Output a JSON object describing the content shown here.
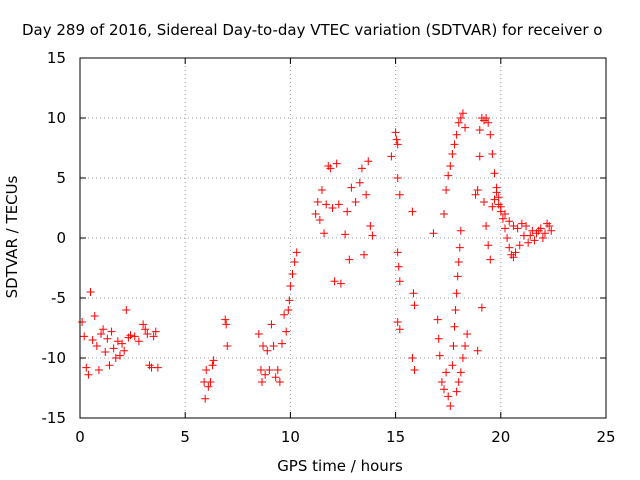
{
  "chart_data": {
    "type": "scatter",
    "title": "Day 289 of 2016, Sidereal Day-to-day VTEC variation (SDTVAR) for receiver o",
    "xlabel": "GPS time / hours",
    "ylabel": "SDTVAR / TECUs",
    "xlim": [
      0,
      25
    ],
    "ylim": [
      -15,
      15
    ],
    "xticks": [
      0,
      5,
      10,
      15,
      20,
      25
    ],
    "yticks": [
      -15,
      -10,
      -5,
      0,
      5,
      10,
      15
    ],
    "xtick_labels": [
      "0",
      "5",
      "10",
      "15",
      "20",
      "25"
    ],
    "ytick_labels": [
      "-15",
      "-10",
      "-5",
      "0",
      "5",
      "10",
      "15"
    ],
    "grid": true,
    "marker": "+",
    "color": "#ff0000",
    "series": [
      {
        "name": "SDTVAR",
        "points": [
          [
            0.1,
            -7.0
          ],
          [
            0.2,
            -8.2
          ],
          [
            0.3,
            -10.8
          ],
          [
            0.4,
            -11.4
          ],
          [
            0.5,
            -4.5
          ],
          [
            0.6,
            -8.5
          ],
          [
            0.7,
            -6.5
          ],
          [
            0.8,
            -9.0
          ],
          [
            0.9,
            -11.0
          ],
          [
            1.0,
            -8.0
          ],
          [
            1.1,
            -7.6
          ],
          [
            1.2,
            -9.5
          ],
          [
            1.3,
            -8.4
          ],
          [
            1.4,
            -10.6
          ],
          [
            1.5,
            -7.8
          ],
          [
            1.6,
            -9.2
          ],
          [
            1.7,
            -10.0
          ],
          [
            1.8,
            -8.6
          ],
          [
            1.9,
            -9.8
          ],
          [
            2.0,
            -8.8
          ],
          [
            2.1,
            -9.4
          ],
          [
            2.2,
            -6.0
          ],
          [
            2.3,
            -8.3
          ],
          [
            2.4,
            -8.1
          ],
          [
            2.6,
            -8.2
          ],
          [
            2.8,
            -8.6
          ],
          [
            3.0,
            -7.2
          ],
          [
            3.1,
            -7.6
          ],
          [
            3.2,
            -8.0
          ],
          [
            3.3,
            -10.6
          ],
          [
            3.4,
            -10.8
          ],
          [
            3.5,
            -8.2
          ],
          [
            3.6,
            -7.8
          ],
          [
            3.7,
            -10.8
          ],
          [
            5.9,
            -12.0
          ],
          [
            5.95,
            -13.4
          ],
          [
            6.0,
            -11.0
          ],
          [
            6.1,
            -12.4
          ],
          [
            6.2,
            -12.0
          ],
          [
            6.3,
            -10.6
          ],
          [
            6.35,
            -10.2
          ],
          [
            6.9,
            -6.8
          ],
          [
            6.95,
            -7.2
          ],
          [
            7.0,
            -9.0
          ],
          [
            8.5,
            -8.0
          ],
          [
            8.6,
            -11.0
          ],
          [
            8.65,
            -12.0
          ],
          [
            8.7,
            -9.0
          ],
          [
            8.8,
            -11.4
          ],
          [
            8.9,
            -9.4
          ],
          [
            9.0,
            -11.0
          ],
          [
            9.1,
            -7.2
          ],
          [
            9.2,
            -9.0
          ],
          [
            9.3,
            -11.6
          ],
          [
            9.4,
            -11.0
          ],
          [
            9.5,
            -12.0
          ],
          [
            9.6,
            -8.8
          ],
          [
            9.7,
            -6.4
          ],
          [
            9.8,
            -7.8
          ],
          [
            9.9,
            -6.0
          ],
          [
            9.95,
            -5.2
          ],
          [
            10.0,
            -4.0
          ],
          [
            10.1,
            -3.0
          ],
          [
            10.2,
            -2.0
          ],
          [
            10.3,
            -1.2
          ],
          [
            11.2,
            2.0
          ],
          [
            11.3,
            3.0
          ],
          [
            11.4,
            1.5
          ],
          [
            11.5,
            4.0
          ],
          [
            11.6,
            0.4
          ],
          [
            11.7,
            2.8
          ],
          [
            11.8,
            6.0
          ],
          [
            11.9,
            5.8
          ],
          [
            12.0,
            2.5
          ],
          [
            12.1,
            -3.6
          ],
          [
            12.2,
            6.2
          ],
          [
            12.3,
            2.8
          ],
          [
            12.4,
            -3.8
          ],
          [
            12.6,
            0.3
          ],
          [
            12.7,
            2.2
          ],
          [
            12.8,
            -1.8
          ],
          [
            12.9,
            4.2
          ],
          [
            13.1,
            3.0
          ],
          [
            13.3,
            4.6
          ],
          [
            13.4,
            5.8
          ],
          [
            13.5,
            -1.4
          ],
          [
            13.6,
            3.6
          ],
          [
            13.7,
            6.4
          ],
          [
            13.8,
            1.0
          ],
          [
            13.9,
            0.2
          ],
          [
            14.8,
            6.8
          ],
          [
            15.0,
            8.8
          ],
          [
            15.05,
            8.2
          ],
          [
            15.1,
            7.8
          ],
          [
            15.1,
            5.0
          ],
          [
            15.2,
            3.6
          ],
          [
            15.1,
            -1.2
          ],
          [
            15.15,
            -2.4
          ],
          [
            15.2,
            -3.6
          ],
          [
            15.1,
            -7.0
          ],
          [
            15.2,
            -7.6
          ],
          [
            15.8,
            2.2
          ],
          [
            15.85,
            -4.6
          ],
          [
            15.9,
            -5.6
          ],
          [
            15.8,
            -10.0
          ],
          [
            15.9,
            -11.0
          ],
          [
            16.8,
            0.4
          ],
          [
            17.0,
            -6.8
          ],
          [
            17.05,
            -8.4
          ],
          [
            17.1,
            -9.8
          ],
          [
            17.2,
            -12.0
          ],
          [
            17.3,
            -12.6
          ],
          [
            17.4,
            -11.2
          ],
          [
            17.5,
            -13.2
          ],
          [
            17.6,
            -14.0
          ],
          [
            17.3,
            2.0
          ],
          [
            17.4,
            4.0
          ],
          [
            17.5,
            5.2
          ],
          [
            17.6,
            6.0
          ],
          [
            17.7,
            7.0
          ],
          [
            17.8,
            7.8
          ],
          [
            17.9,
            8.6
          ],
          [
            18.0,
            9.6
          ],
          [
            18.1,
            10.0
          ],
          [
            18.2,
            10.4
          ],
          [
            18.3,
            9.2
          ],
          [
            17.7,
            -10.6
          ],
          [
            17.75,
            -9.0
          ],
          [
            17.8,
            -7.4
          ],
          [
            17.85,
            -6.0
          ],
          [
            17.9,
            -4.6
          ],
          [
            17.95,
            -3.2
          ],
          [
            18.0,
            -2.0
          ],
          [
            18.05,
            -0.8
          ],
          [
            18.1,
            0.6
          ],
          [
            17.9,
            -12.8
          ],
          [
            18.0,
            -12.0
          ],
          [
            18.1,
            -11.2
          ],
          [
            18.2,
            -10.0
          ],
          [
            18.3,
            -9.0
          ],
          [
            18.4,
            -8.0
          ],
          [
            18.9,
            -9.4
          ],
          [
            19.0,
            9.0
          ],
          [
            19.1,
            10.0
          ],
          [
            19.2,
            9.8
          ],
          [
            19.3,
            10.0
          ],
          [
            19.4,
            9.6
          ],
          [
            19.5,
            8.6
          ],
          [
            19.6,
            7.0
          ],
          [
            19.7,
            5.4
          ],
          [
            19.8,
            3.8
          ],
          [
            19.9,
            2.8
          ],
          [
            20.0,
            2.2
          ],
          [
            20.1,
            1.6
          ],
          [
            20.2,
            0.8
          ],
          [
            20.3,
            0.0
          ],
          [
            20.4,
            -0.8
          ],
          [
            20.5,
            -1.4
          ],
          [
            20.6,
            -1.6
          ],
          [
            20.7,
            -1.2
          ],
          [
            20.9,
            -0.6
          ],
          [
            21.1,
            0.2
          ],
          [
            21.3,
            -0.4
          ],
          [
            21.5,
            0.6
          ],
          [
            21.7,
            0.4
          ],
          [
            21.9,
            0.8
          ],
          [
            22.1,
            0.4
          ],
          [
            22.3,
            1.0
          ],
          [
            22.4,
            0.6
          ],
          [
            18.8,
            3.6
          ],
          [
            18.9,
            4.0
          ],
          [
            19.0,
            6.8
          ],
          [
            19.1,
            -5.8
          ],
          [
            19.2,
            3.0
          ],
          [
            19.3,
            1.0
          ],
          [
            19.4,
            -0.6
          ],
          [
            19.5,
            -1.8
          ],
          [
            19.6,
            2.6
          ],
          [
            19.7,
            3.2
          ],
          [
            19.8,
            4.2
          ],
          [
            19.9,
            3.4
          ],
          [
            20.0,
            2.6
          ],
          [
            20.2,
            2.0
          ],
          [
            20.4,
            1.4
          ],
          [
            20.6,
            1.0
          ],
          [
            20.8,
            0.8
          ],
          [
            21.0,
            1.2
          ],
          [
            21.2,
            1.0
          ],
          [
            21.4,
            0.2
          ],
          [
            21.6,
            -0.2
          ],
          [
            21.8,
            0.6
          ],
          [
            22.0,
            0.0
          ],
          [
            22.2,
            1.2
          ]
        ]
      }
    ]
  }
}
